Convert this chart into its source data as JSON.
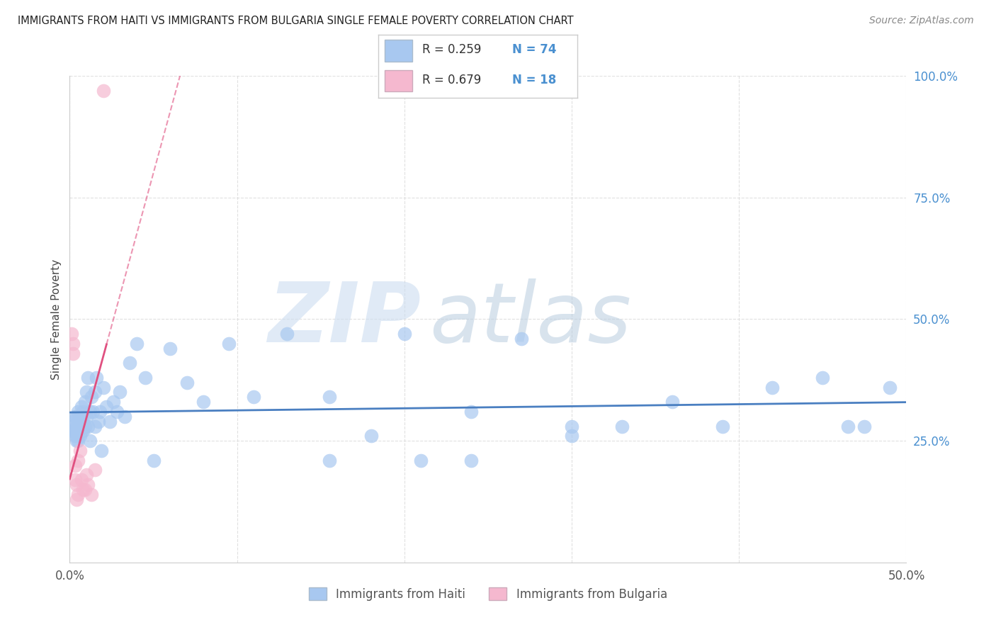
{
  "title": "IMMIGRANTS FROM HAITI VS IMMIGRANTS FROM BULGARIA SINGLE FEMALE POVERTY CORRELATION CHART",
  "source": "Source: ZipAtlas.com",
  "ylabel": "Single Female Poverty",
  "xlim": [
    0.0,
    0.5
  ],
  "ylim": [
    0.0,
    1.0
  ],
  "xticks": [
    0.0,
    0.1,
    0.2,
    0.3,
    0.4,
    0.5
  ],
  "xticklabels": [
    "0.0%",
    "",
    "",
    "",
    "",
    "50.0%"
  ],
  "yticks_right": [
    0.25,
    0.5,
    0.75,
    1.0
  ],
  "yticklabels_right": [
    "25.0%",
    "50.0%",
    "75.0%",
    "100.0%"
  ],
  "color_haiti": "#a8c8f0",
  "color_bulgaria": "#f5b8cf",
  "trendline_haiti_color": "#4a7fc1",
  "trendline_bulgaria_color": "#e05080",
  "watermark_zip_color": "#dce9f5",
  "watermark_atlas_color": "#c8d8e8",
  "grid_color": "#e0e0e0",
  "haiti_x": [
    0.001,
    0.002,
    0.002,
    0.003,
    0.003,
    0.003,
    0.004,
    0.004,
    0.004,
    0.004,
    0.005,
    0.005,
    0.005,
    0.005,
    0.006,
    0.006,
    0.006,
    0.007,
    0.007,
    0.007,
    0.008,
    0.008,
    0.008,
    0.009,
    0.009,
    0.01,
    0.01,
    0.011,
    0.011,
    0.012,
    0.012,
    0.013,
    0.014,
    0.015,
    0.015,
    0.016,
    0.017,
    0.018,
    0.019,
    0.02,
    0.022,
    0.024,
    0.026,
    0.028,
    0.03,
    0.033,
    0.036,
    0.04,
    0.045,
    0.05,
    0.06,
    0.07,
    0.08,
    0.095,
    0.11,
    0.13,
    0.155,
    0.18,
    0.21,
    0.24,
    0.27,
    0.3,
    0.33,
    0.36,
    0.39,
    0.42,
    0.45,
    0.465,
    0.475,
    0.49,
    0.2,
    0.24,
    0.155,
    0.3
  ],
  "haiti_y": [
    0.28,
    0.27,
    0.29,
    0.3,
    0.27,
    0.26,
    0.3,
    0.28,
    0.26,
    0.25,
    0.31,
    0.29,
    0.27,
    0.25,
    0.3,
    0.28,
    0.26,
    0.32,
    0.29,
    0.27,
    0.31,
    0.29,
    0.27,
    0.33,
    0.28,
    0.35,
    0.3,
    0.38,
    0.28,
    0.31,
    0.25,
    0.34,
    0.31,
    0.35,
    0.28,
    0.38,
    0.29,
    0.31,
    0.23,
    0.36,
    0.32,
    0.29,
    0.33,
    0.31,
    0.35,
    0.3,
    0.41,
    0.45,
    0.38,
    0.21,
    0.44,
    0.37,
    0.33,
    0.45,
    0.34,
    0.47,
    0.34,
    0.26,
    0.21,
    0.31,
    0.46,
    0.28,
    0.28,
    0.33,
    0.28,
    0.36,
    0.38,
    0.28,
    0.28,
    0.36,
    0.47,
    0.21,
    0.21,
    0.26
  ],
  "bulgaria_x": [
    0.001,
    0.002,
    0.002,
    0.003,
    0.003,
    0.004,
    0.004,
    0.005,
    0.005,
    0.006,
    0.007,
    0.008,
    0.009,
    0.01,
    0.011,
    0.013,
    0.015,
    0.02
  ],
  "bulgaria_y": [
    0.47,
    0.45,
    0.43,
    0.2,
    0.17,
    0.16,
    0.13,
    0.21,
    0.14,
    0.23,
    0.17,
    0.15,
    0.15,
    0.18,
    0.16,
    0.14,
    0.19,
    0.97
  ],
  "trendline_haiti_x_start": 0.0,
  "trendline_haiti_x_end": 0.5,
  "trendline_bulgaria_solid_x_start": 0.0,
  "trendline_bulgaria_solid_x_end": 0.022,
  "trendline_bulgaria_dash_x_start": 0.022,
  "trendline_bulgaria_dash_x_end": 0.45
}
